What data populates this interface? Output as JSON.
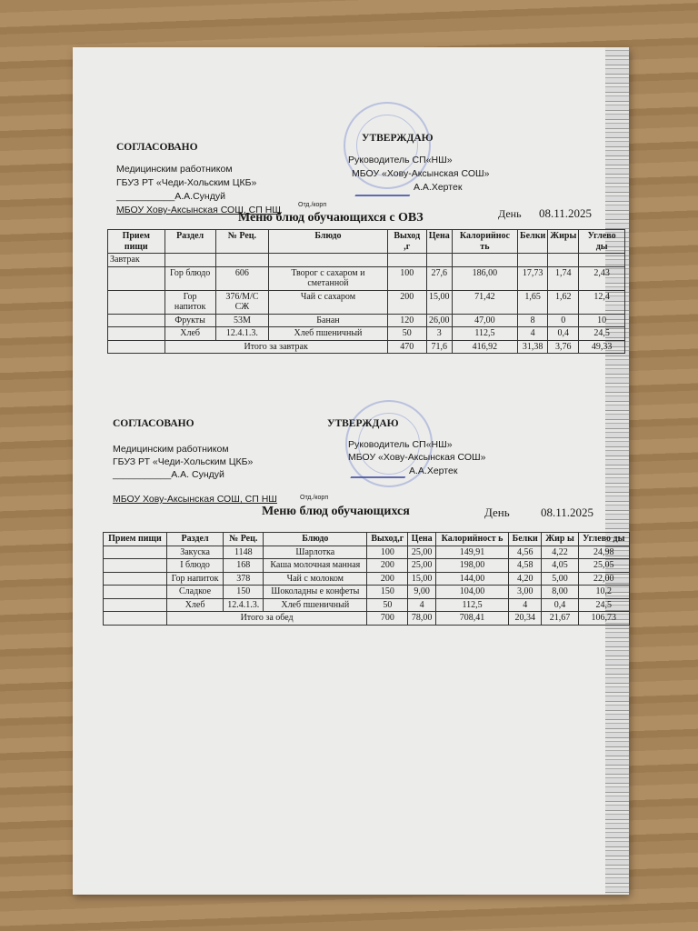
{
  "section1": {
    "agreed": "СОГЛАСОВАНО",
    "med_line1": "Медицинским работником",
    "med_line2": "ГБУЗ РТ «Чеди-Хольским ЦКБ»",
    "med_sign": "___________А.А.Сундуй",
    "school": "МБОУ Хову-Аксынская СОШ, СП НШ",
    "dept": "Отд./корп",
    "approve": "УТВЕРЖДАЮ",
    "head_line1": "Руководитель  СП«НШ»",
    "head_line2": "МБОУ «Хову-Аксынская СОШ»",
    "head_sign": "А.А.Хертек",
    "title": "Меню блюд обучающихся с ОВЗ",
    "day_label": "День",
    "date": "08.11.2025"
  },
  "section2": {
    "agreed": "СОГЛАСОВАНО",
    "med_line1": "Медицинским работником",
    "med_line2": "ГБУЗ РТ «Чеди-Хольским ЦКБ»",
    "med_sign": "___________А.А. Сундуй",
    "school": "МБОУ Хову-Аксынская СОШ, СП НШ",
    "dept": "Отд./корп",
    "approve": "УТВЕРЖДАЮ",
    "head_line1": "Руководитель СП«НШ»",
    "head_line2": "МБОУ «Хову-Аксынская СОШ»",
    "head_sign": "А.А.Хертек",
    "title": "Меню блюд обучающихся",
    "day_label": "День",
    "date": "08.11.2025"
  },
  "table1": {
    "headers": [
      "Прием пищи",
      "Раздел",
      "№ Рец.",
      "Блюдо",
      "Выход ,г",
      "Цена",
      "Калорийнос ть",
      "Белки",
      "Жиры",
      "Углево ды"
    ],
    "meal": "Завтрак",
    "rows": [
      [
        "",
        "Гор блюдо",
        "606",
        "Творог с сахаром и сметанной",
        "100",
        "27,6",
        "186,00",
        "17,73",
        "1,74",
        "2,43"
      ],
      [
        "",
        "Гор напиток",
        "376/М/С СЖ",
        "Чай с сахаром",
        "200",
        "15,00",
        "71,42",
        "1,65",
        "1,62",
        "12,4"
      ],
      [
        "",
        "Фрукты",
        "53М",
        "Банан",
        "120",
        "26,00",
        "47,00",
        "8",
        "0",
        "10"
      ],
      [
        "",
        "Хлеб",
        "12.4.1.3.",
        "Хлеб пшеничный",
        "50",
        "3",
        "112,5",
        "4",
        "0,4",
        "24,5"
      ]
    ],
    "total_label": "Итого за завтрак",
    "total": [
      "470",
      "71,6",
      "416,92",
      "31,38",
      "3,76",
      "49,33"
    ]
  },
  "table2": {
    "headers": [
      "Прием пищи",
      "Раздел",
      "№ Рец.",
      "Блюдо",
      "Выход,г",
      "Цена",
      "Калорийност ь",
      "Белки",
      "Жир ы",
      "Углево ды"
    ],
    "rows": [
      [
        "",
        "Закуска",
        "1148",
        "Шарлотка",
        "100",
        "25,00",
        "149,91",
        "4,56",
        "4,22",
        "24,98"
      ],
      [
        "",
        "I блюдо",
        "168",
        "Каша молочная манная",
        "200",
        "25,00",
        "198,00",
        "4,58",
        "4,05",
        "25,05"
      ],
      [
        "",
        "Гор напиток",
        "378",
        "Чай с молоком",
        "200",
        "15,00",
        "144,00",
        "4,20",
        "5,00",
        "22,00"
      ],
      [
        "",
        "Сладкое",
        "150",
        "Шоколадны е конфеты",
        "150",
        "9,00",
        "104,00",
        "3,00",
        "8,00",
        "10,2"
      ],
      [
        "",
        "Хлеб",
        "12.4.1.3.",
        "Хлеб пшеничный",
        "50",
        "4",
        "112,5",
        "4",
        "0,4",
        "24,5"
      ]
    ],
    "total_label": "Итого за обед",
    "total": [
      "700",
      "78,00",
      "708,41",
      "20,34",
      "21,67",
      "106,73"
    ]
  }
}
